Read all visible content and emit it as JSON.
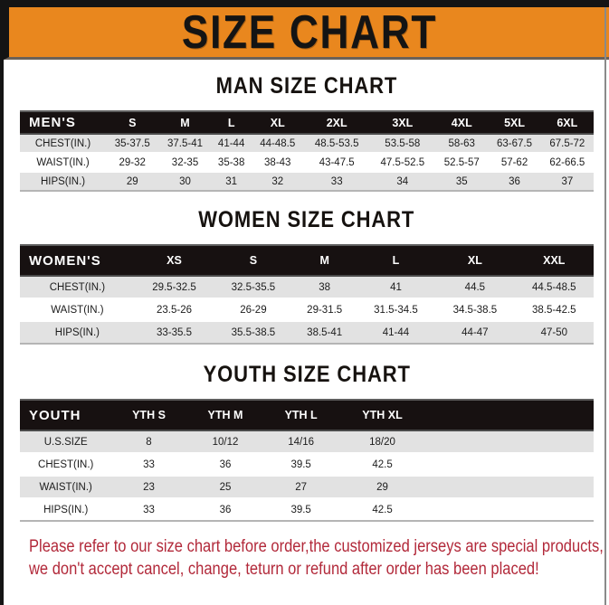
{
  "banner": {
    "title": "SIZE CHART",
    "bg_color": "#E9871E",
    "text_color": "#141414"
  },
  "sections": [
    {
      "title": "MAN SIZE CHART",
      "table": {
        "header": [
          "MEN'S",
          "S",
          "M",
          "L",
          "XL",
          "2XL",
          "3XL",
          "4XL",
          "5XL",
          "6XL"
        ],
        "rows": [
          [
            "CHEST(IN.)",
            "35-37.5",
            "37.5-41",
            "41-44",
            "44-48.5",
            "48.5-53.5",
            "53.5-58",
            "58-63",
            "63-67.5",
            "67.5-72"
          ],
          [
            "WAIST(IN.)",
            "29-32",
            "32-35",
            "35-38",
            "38-43",
            "43-47.5",
            "47.5-52.5",
            "52.5-57",
            "57-62",
            "62-66.5"
          ],
          [
            "HIPS(IN.)",
            "29",
            "30",
            "31",
            "32",
            "33",
            "34",
            "35",
            "36",
            "37"
          ]
        ]
      }
    },
    {
      "title": "WOMEN SIZE CHART",
      "table": {
        "header": [
          "WOMEN'S",
          "XS",
          "S",
          "M",
          "L",
          "XL",
          "XXL"
        ],
        "rows": [
          [
            "CHEST(IN.)",
            "29.5-32.5",
            "32.5-35.5",
            "38",
            "41",
            "44.5",
            "44.5-48.5"
          ],
          [
            "WAIST(IN.)",
            "23.5-26",
            "26-29",
            "29-31.5",
            "31.5-34.5",
            "34.5-38.5",
            "38.5-42.5"
          ],
          [
            "HIPS(IN.)",
            "33-35.5",
            "35.5-38.5",
            "38.5-41",
            "41-44",
            "44-47",
            "47-50"
          ]
        ]
      }
    },
    {
      "title": "YOUTH SIZE CHART",
      "table": {
        "header": [
          "YOUTH",
          "YTH S",
          "YTH M",
          "YTH L",
          "YTH XL"
        ],
        "trailing_space": true,
        "rows": [
          [
            "U.S.SIZE",
            "8",
            "10/12",
            "14/16",
            "18/20"
          ],
          [
            "CHEST(IN.)",
            "33",
            "36",
            "39.5",
            "42.5"
          ],
          [
            "WAIST(IN.)",
            "23",
            "25",
            "27",
            "29"
          ],
          [
            "HIPS(IN.)",
            "33",
            "36",
            "39.5",
            "42.5"
          ]
        ]
      }
    }
  ],
  "footer": {
    "lines": [
      "Please refer to our size chart before order,the customized jerseys are special products,",
      "we don't accept cancel, change, teturn or refund after order has been placed!"
    ],
    "text_color": "#B2293A"
  },
  "colors": {
    "black": "#141414",
    "orange": "#E9871E",
    "table_header_bg": "#171111",
    "row_stripe": "#E2E2E2",
    "footer_red": "#B2293A"
  }
}
